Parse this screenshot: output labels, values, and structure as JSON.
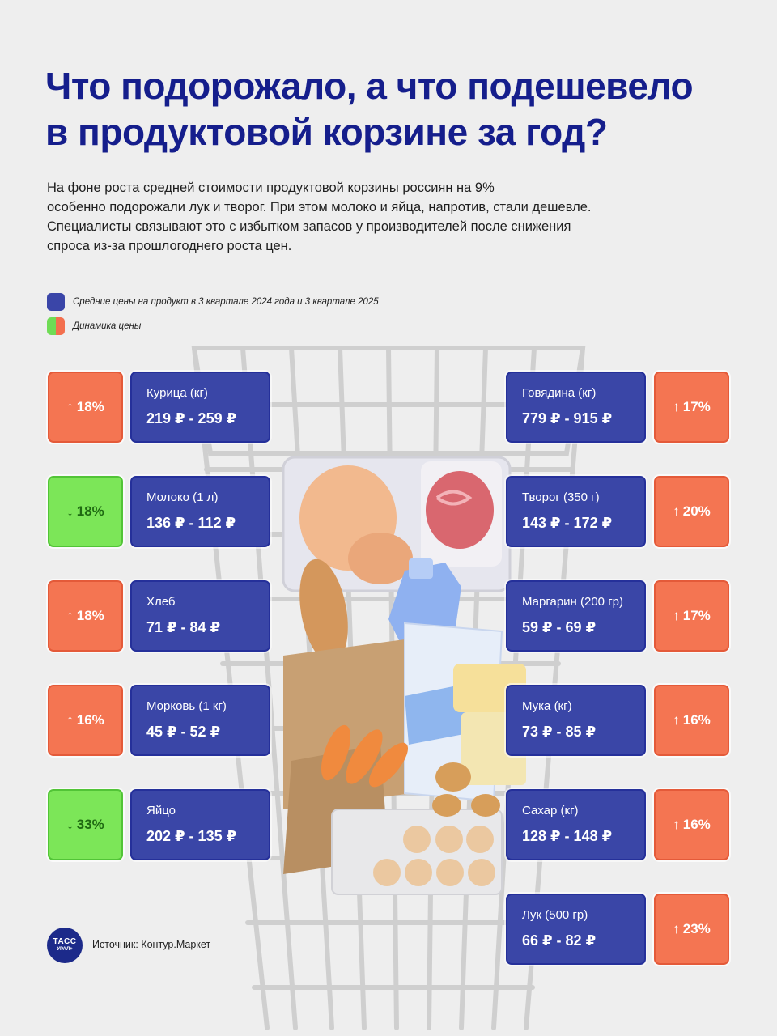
{
  "title": {
    "line1": "Что подорожало, а что подешевело",
    "line2": "в продуктовой корзине за год?"
  },
  "intro": {
    "line1": "На фоне роста средней стоимости продуктовой корзины россиян на 9%",
    "line2": "особенно подорожали лук и творог. При этом молоко и яйца, напротив, стали дешевле.",
    "line3": "Специалисты связывают это с избытком запасов у производителей после снижения",
    "line4": "спроса из-за прошлогоднего роста цен."
  },
  "legend": {
    "prices": "Средние цены на продукт в 3 квартале 2024 года и 3 квартале 2025",
    "dynamics": "Динамика цены"
  },
  "colors": {
    "title": "#151e8c",
    "card": "#3a46a7",
    "increase": "#f47552",
    "decrease": "#7ce658"
  },
  "chart_data": {
    "type": "table",
    "columns": [
      "product",
      "price_q3_2024",
      "price_q3_2025",
      "change"
    ],
    "currency": "₽",
    "items": [
      {
        "name": "Курица (кг)",
        "price_2024": 219,
        "price_2025": 259,
        "price_label": "219 ₽ - 259 ₽",
        "change_pct": 18,
        "direction": "up",
        "change_label": "18%"
      },
      {
        "name": "Молоко (1 л)",
        "price_2024": 136,
        "price_2025": 112,
        "price_label": "136 ₽ - 112 ₽",
        "change_pct": -18,
        "direction": "down",
        "change_label": "18%"
      },
      {
        "name": "Хлеб",
        "price_2024": 71,
        "price_2025": 84,
        "price_label": "71 ₽ - 84 ₽",
        "change_pct": 18,
        "direction": "up",
        "change_label": "18%"
      },
      {
        "name": "Морковь (1 кг)",
        "price_2024": 45,
        "price_2025": 52,
        "price_label": "45 ₽ - 52 ₽",
        "change_pct": 16,
        "direction": "up",
        "change_label": "16%"
      },
      {
        "name": "Яйцо",
        "price_2024": 202,
        "price_2025": 135,
        "price_label": "202 ₽ - 135 ₽",
        "change_pct": -33,
        "direction": "down",
        "change_label": "33%"
      },
      {
        "name": "Говядина (кг)",
        "price_2024": 779,
        "price_2025": 915,
        "price_label": "779 ₽ - 915 ₽",
        "change_pct": 17,
        "direction": "up",
        "change_label": "17%"
      },
      {
        "name": "Творог (350 г)",
        "price_2024": 143,
        "price_2025": 172,
        "price_label": "143 ₽ - 172 ₽",
        "change_pct": 20,
        "direction": "up",
        "change_label": "20%"
      },
      {
        "name": "Маргарин (200 гр)",
        "price_2024": 59,
        "price_2025": 69,
        "price_label": "59 ₽ - 69 ₽",
        "change_pct": 17,
        "direction": "up",
        "change_label": "17%"
      },
      {
        "name": "Мука (кг)",
        "price_2024": 73,
        "price_2025": 85,
        "price_label": "73 ₽ - 85 ₽",
        "change_pct": 16,
        "direction": "up",
        "change_label": "16%"
      },
      {
        "name": "Сахар (кг)",
        "price_2024": 128,
        "price_2025": 148,
        "price_label": "128 ₽ - 148 ₽",
        "change_pct": 16,
        "direction": "up",
        "change_label": "16%"
      },
      {
        "name": "Лук (500 гр)",
        "price_2024": 66,
        "price_2025": 82,
        "price_label": "66 ₽ - 82 ₽",
        "change_pct": 23,
        "direction": "up",
        "change_label": "23%"
      }
    ]
  },
  "footer": {
    "logo_line1": "ТАСС",
    "logo_line2": "УРАЛ+",
    "source": "Источник: Контур.Маркет"
  }
}
